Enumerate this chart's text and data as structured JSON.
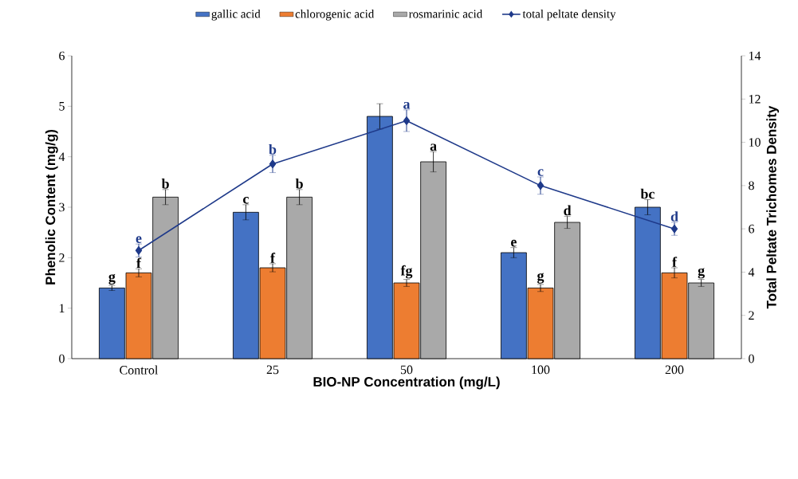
{
  "chart_data": {
    "type": "bar",
    "xlabel": "BIO-NP Concentration (mg/L)",
    "ylabel": "Phenolic Content (mg/g)",
    "y2label": "Total Peltate Trichomes Density",
    "categories": [
      "Control",
      "25",
      "50",
      "100",
      "200"
    ],
    "series": [
      {
        "name": "gallic acid",
        "color": "#4472c4",
        "values": [
          1.4,
          2.9,
          4.8,
          2.1,
          3.0
        ],
        "errors": [
          0.05,
          0.15,
          0.25,
          0.1,
          0.15
        ],
        "value_labels": [
          "g",
          "c",
          null,
          "e",
          "bc"
        ]
      },
      {
        "name": "chlorogenic acid",
        "color": "#ed7d31",
        "values": [
          1.7,
          1.8,
          1.5,
          1.4,
          1.7
        ],
        "errors": [
          0.08,
          0.08,
          0.07,
          0.07,
          0.1
        ],
        "value_labels": [
          "f",
          "f",
          "fg",
          "g",
          "f"
        ]
      },
      {
        "name": "rosmarinic acid",
        "color": "#a9a9a9",
        "values": [
          3.2,
          3.2,
          3.9,
          2.7,
          1.5
        ],
        "errors": [
          0.15,
          0.15,
          0.2,
          0.12,
          0.07
        ],
        "value_labels": [
          "b",
          "b",
          "a",
          "d",
          "g"
        ]
      },
      {
        "name": "total peltate density",
        "type": "line",
        "axis": "y2",
        "color": "#1f3a8a",
        "values": [
          5,
          9,
          11,
          8,
          6
        ],
        "errors": [
          0.3,
          0.4,
          0.5,
          0.4,
          0.3
        ],
        "value_labels": [
          "e",
          "b",
          "a",
          "c",
          "d"
        ]
      }
    ],
    "ylim": [
      0,
      6
    ],
    "yticks": [
      0,
      1,
      2,
      3,
      4,
      5,
      6
    ],
    "y2lim": [
      0,
      14
    ],
    "y2ticks": [
      0,
      2,
      4,
      6,
      8,
      10,
      12,
      14
    ],
    "legend": "top",
    "marker": "diamond",
    "line_style": "solid",
    "grid": false
  }
}
